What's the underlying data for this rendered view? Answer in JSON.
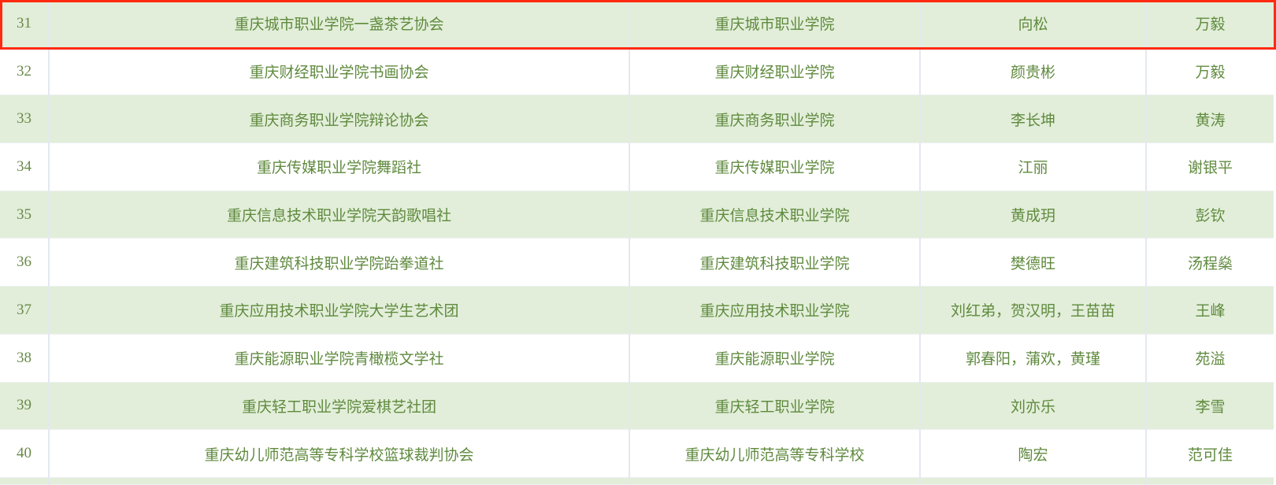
{
  "highlight_color": "#ff2a10",
  "row_alt_color": "#e2eed9",
  "text_color": "#5f8a3e",
  "rows": [
    {
      "no": "31",
      "name": "重庆城市职业学院一盏茶艺协会",
      "school": "重庆城市职业学院",
      "advisor": "向松",
      "contact": "万毅"
    },
    {
      "no": "32",
      "name": "重庆财经职业学院书画协会",
      "school": "重庆财经职业学院",
      "advisor": "颜贵彬",
      "contact": "万毅"
    },
    {
      "no": "33",
      "name": "重庆商务职业学院辩论协会",
      "school": "重庆商务职业学院",
      "advisor": "李长坤",
      "contact": "黄涛"
    },
    {
      "no": "34",
      "name": "重庆传媒职业学院舞蹈社",
      "school": "重庆传媒职业学院",
      "advisor": "江丽",
      "contact": "谢银平"
    },
    {
      "no": "35",
      "name": "重庆信息技术职业学院天韵歌唱社",
      "school": "重庆信息技术职业学院",
      "advisor": "黄成玥",
      "contact": "彭钦"
    },
    {
      "no": "36",
      "name": "重庆建筑科技职业学院跆拳道社",
      "school": "重庆建筑科技职业学院",
      "advisor": "樊德旺",
      "contact": "汤程燊"
    },
    {
      "no": "37",
      "name": "重庆应用技术职业学院大学生艺术团",
      "school": "重庆应用技术职业学院",
      "advisor": "刘红弟，贺汉明，王苗苗",
      "contact": "王峰"
    },
    {
      "no": "38",
      "name": "重庆能源职业学院青橄榄文学社",
      "school": "重庆能源职业学院",
      "advisor": "郭春阳，蒲欢，黄瑾",
      "contact": "苑溢"
    },
    {
      "no": "39",
      "name": "重庆轻工职业学院爱棋艺社团",
      "school": "重庆轻工职业学院",
      "advisor": "刘亦乐",
      "contact": "李雪"
    },
    {
      "no": "40",
      "name": "重庆幼儿师范高等专科学校篮球裁判协会",
      "school": "重庆幼儿师范高等专科学校",
      "advisor": "陶宏",
      "contact": "范可佳"
    }
  ]
}
